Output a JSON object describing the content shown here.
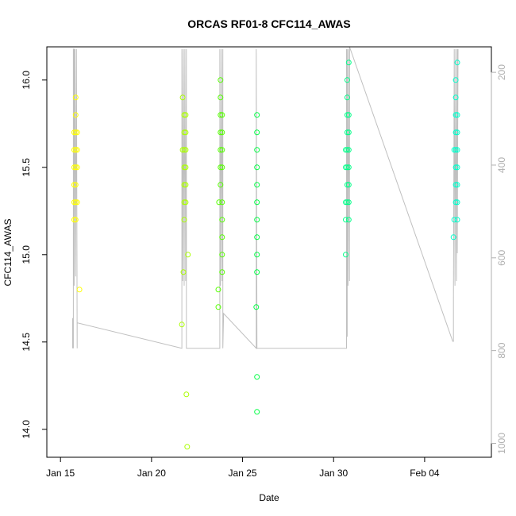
{
  "chart_data": {
    "type": "scatter",
    "title": "ORCAS RF01-8 CFC114_AWAS",
    "xlabel": "Date",
    "ylabel": "CFC114_AWAS",
    "xlim": [
      "2016-01-14T06:00",
      "2016-02-07T16:00"
    ],
    "ylim": [
      13.84,
      16.19
    ],
    "x_ticks": [
      "2016-01-15",
      "2016-01-20",
      "2016-01-25",
      "2016-01-30",
      "2016-02-04"
    ],
    "x_tick_labels": [
      "Jan 15",
      "Jan 20",
      "Jan 25",
      "Jan 30",
      "Feb 04"
    ],
    "y_ticks": [
      14.0,
      14.5,
      15.0,
      15.5,
      16.0
    ],
    "y_tick_labels": [
      "14.0",
      "14.5",
      "15.0",
      "15.5",
      "16.0"
    ],
    "y2_ticks": [
      200,
      400,
      600,
      800,
      1000
    ],
    "y2_tick_labels": [
      "200",
      "400",
      "600",
      "800",
      "1000"
    ],
    "y2_lim": [
      1030,
      145
    ],
    "y2_reversed": true,
    "grid": false,
    "series": [
      {
        "color": "#ffff00",
        "points": [
          [
            "2016-01-15T18:00",
            15.2
          ],
          [
            "2016-01-15T18:00",
            15.3
          ],
          [
            "2016-01-15T18:00",
            15.4
          ],
          [
            "2016-01-15T18:00",
            15.5
          ],
          [
            "2016-01-15T18:00",
            15.6
          ],
          [
            "2016-01-15T18:00",
            15.7
          ],
          [
            "2016-01-15T20:00",
            15.2
          ],
          [
            "2016-01-15T20:00",
            15.3
          ],
          [
            "2016-01-15T20:00",
            15.4
          ],
          [
            "2016-01-15T20:00",
            15.5
          ],
          [
            "2016-01-15T20:00",
            15.6
          ],
          [
            "2016-01-15T20:00",
            15.7
          ],
          [
            "2016-01-15T20:00",
            15.8
          ],
          [
            "2016-01-15T20:00",
            15.9
          ],
          [
            "2016-01-15T22:00",
            15.3
          ],
          [
            "2016-01-15T22:00",
            15.5
          ],
          [
            "2016-01-15T22:00",
            15.6
          ],
          [
            "2016-01-15T22:00",
            15.7
          ],
          [
            "2016-01-16T01:00",
            14.8
          ]
        ]
      },
      {
        "color": "#aaff00",
        "points": [
          [
            "2016-01-21T16:00",
            14.6
          ],
          [
            "2016-01-21T17:00",
            15.6
          ],
          [
            "2016-01-21T17:00",
            15.9
          ],
          [
            "2016-01-21T18:00",
            14.9
          ],
          [
            "2016-01-21T19:00",
            15.2
          ],
          [
            "2016-01-21T19:00",
            15.3
          ],
          [
            "2016-01-21T19:00",
            15.4
          ],
          [
            "2016-01-21T19:00",
            15.5
          ],
          [
            "2016-01-21T19:00",
            15.6
          ],
          [
            "2016-01-21T19:00",
            15.7
          ],
          [
            "2016-01-21T19:00",
            15.8
          ],
          [
            "2016-01-21T21:00",
            15.3
          ],
          [
            "2016-01-21T21:00",
            15.4
          ],
          [
            "2016-01-21T21:00",
            15.5
          ],
          [
            "2016-01-21T21:00",
            15.6
          ],
          [
            "2016-01-21T21:00",
            15.7
          ],
          [
            "2016-01-21T21:00",
            15.8
          ],
          [
            "2016-01-21T22:00",
            14.2
          ],
          [
            "2016-01-21T23:00",
            13.9
          ],
          [
            "2016-01-22T00:00",
            15.0
          ]
        ]
      },
      {
        "color": "#55ff00",
        "points": [
          [
            "2016-01-23T16:00",
            14.7
          ],
          [
            "2016-01-23T16:00",
            14.8
          ],
          [
            "2016-01-23T17:00",
            15.3
          ],
          [
            "2016-01-23T19:00",
            15.4
          ],
          [
            "2016-01-23T19:00",
            15.5
          ],
          [
            "2016-01-23T19:00",
            15.6
          ],
          [
            "2016-01-23T19:00",
            15.7
          ],
          [
            "2016-01-23T19:00",
            15.8
          ],
          [
            "2016-01-23T19:00",
            15.9
          ],
          [
            "2016-01-23T19:00",
            16.0
          ],
          [
            "2016-01-23T21:00",
            14.9
          ],
          [
            "2016-01-23T21:00",
            15.0
          ],
          [
            "2016-01-23T21:00",
            15.1
          ],
          [
            "2016-01-23T21:00",
            15.2
          ],
          [
            "2016-01-23T21:00",
            15.3
          ],
          [
            "2016-01-23T21:00",
            15.5
          ],
          [
            "2016-01-23T21:00",
            15.6
          ],
          [
            "2016-01-23T21:00",
            15.7
          ],
          [
            "2016-01-23T21:00",
            15.8
          ]
        ]
      },
      {
        "color": "#00ff44",
        "points": [
          [
            "2016-01-25T18:00",
            14.7
          ],
          [
            "2016-01-25T19:00",
            14.1
          ],
          [
            "2016-01-25T19:00",
            14.3
          ],
          [
            "2016-01-25T19:00",
            14.9
          ],
          [
            "2016-01-25T19:00",
            15.0
          ],
          [
            "2016-01-25T19:00",
            15.1
          ],
          [
            "2016-01-25T19:00",
            15.2
          ],
          [
            "2016-01-25T19:00",
            15.3
          ],
          [
            "2016-01-25T19:00",
            15.4
          ],
          [
            "2016-01-25T19:00",
            15.5
          ],
          [
            "2016-01-25T19:00",
            15.6
          ],
          [
            "2016-01-25T19:00",
            15.7
          ],
          [
            "2016-01-25T19:00",
            15.8
          ]
        ]
      },
      {
        "color": "#00ff88",
        "points": [
          [
            "2016-01-30T16:00",
            15.0
          ],
          [
            "2016-01-30T16:00",
            15.2
          ],
          [
            "2016-01-30T16:00",
            15.3
          ],
          [
            "2016-01-30T16:00",
            15.5
          ],
          [
            "2016-01-30T16:00",
            15.6
          ],
          [
            "2016-01-30T18:00",
            15.3
          ],
          [
            "2016-01-30T18:00",
            15.4
          ],
          [
            "2016-01-30T18:00",
            15.5
          ],
          [
            "2016-01-30T18:00",
            15.6
          ],
          [
            "2016-01-30T18:00",
            15.7
          ],
          [
            "2016-01-30T18:00",
            15.8
          ],
          [
            "2016-01-30T18:00",
            15.9
          ],
          [
            "2016-01-30T18:00",
            16.0
          ],
          [
            "2016-01-30T20:00",
            15.2
          ],
          [
            "2016-01-30T20:00",
            15.3
          ],
          [
            "2016-01-30T20:00",
            15.4
          ],
          [
            "2016-01-30T20:00",
            15.5
          ],
          [
            "2016-01-30T20:00",
            15.6
          ],
          [
            "2016-01-30T20:00",
            15.7
          ],
          [
            "2016-01-30T20:00",
            15.8
          ],
          [
            "2016-01-30T20:00",
            16.1
          ]
        ]
      },
      {
        "color": "#00ffcc",
        "points": [
          [
            "2016-02-05T14:00",
            15.1
          ],
          [
            "2016-02-05T15:00",
            15.2
          ],
          [
            "2016-02-05T15:00",
            15.6
          ],
          [
            "2016-02-05T17:00",
            15.3
          ],
          [
            "2016-02-05T17:00",
            15.4
          ],
          [
            "2016-02-05T17:00",
            15.5
          ],
          [
            "2016-02-05T17:00",
            15.6
          ],
          [
            "2016-02-05T17:00",
            15.7
          ],
          [
            "2016-02-05T17:00",
            15.8
          ],
          [
            "2016-02-05T17:00",
            15.9
          ],
          [
            "2016-02-05T17:00",
            16.0
          ],
          [
            "2016-02-05T19:00",
            15.2
          ],
          [
            "2016-02-05T19:00",
            15.3
          ],
          [
            "2016-02-05T19:00",
            15.4
          ],
          [
            "2016-02-05T19:00",
            15.5
          ],
          [
            "2016-02-05T19:00",
            15.6
          ],
          [
            "2016-02-05T19:00",
            15.7
          ],
          [
            "2016-02-05T19:00",
            15.8
          ],
          [
            "2016-02-05T19:00",
            16.1
          ]
        ]
      }
    ],
    "trace_color": "#c0c0c0",
    "trace": [
      [
        "2016-01-15T16:00",
        795
      ],
      [
        "2016-01-15T16:00",
        730
      ],
      [
        "2016-01-15T17:00",
        795
      ],
      [
        "2016-01-15T17:00",
        150
      ],
      [
        "2016-01-15T18:00",
        150
      ],
      [
        "2016-01-15T18:00",
        660
      ],
      [
        "2016-01-15T19:00",
        150
      ],
      [
        "2016-01-15T20:00",
        640
      ],
      [
        "2016-01-15T21:00",
        150
      ],
      [
        "2016-01-15T22:00",
        795
      ],
      [
        "2016-01-15T22:00",
        740
      ],
      [
        "2016-01-21T16:00",
        795
      ],
      [
        "2016-01-21T16:00",
        150
      ],
      [
        "2016-01-21T17:00",
        650
      ],
      [
        "2016-01-21T18:00",
        150
      ],
      [
        "2016-01-21T19:00",
        660
      ],
      [
        "2016-01-21T20:00",
        150
      ],
      [
        "2016-01-21T21:00",
        650
      ],
      [
        "2016-01-21T22:00",
        150
      ],
      [
        "2016-01-21T22:00",
        795
      ],
      [
        "2016-01-23T18:00",
        795
      ],
      [
        "2016-01-23T18:00",
        150
      ],
      [
        "2016-01-23T19:00",
        660
      ],
      [
        "2016-01-23T20:00",
        150
      ],
      [
        "2016-01-23T21:00",
        650
      ],
      [
        "2016-01-23T22:00",
        150
      ],
      [
        "2016-01-23T22:00",
        795
      ],
      [
        "2016-01-23T23:00",
        720
      ],
      [
        "2016-01-25T18:00",
        795
      ],
      [
        "2016-01-25T18:00",
        150
      ],
      [
        "2016-01-25T19:00",
        795
      ],
      [
        "2016-01-30T17:00",
        795
      ],
      [
        "2016-01-30T17:00",
        150
      ],
      [
        "2016-01-30T18:00",
        770
      ],
      [
        "2016-01-30T18:00",
        150
      ],
      [
        "2016-01-30T19:00",
        660
      ],
      [
        "2016-01-30T20:00",
        150
      ],
      [
        "2016-01-30T21:00",
        650
      ],
      [
        "2016-01-30T21:00",
        150
      ],
      [
        "2016-01-30T21:00",
        145
      ],
      [
        "2016-02-05T13:00",
        780
      ],
      [
        "2016-02-05T14:00",
        780
      ],
      [
        "2016-02-05T14:00",
        690
      ],
      [
        "2016-02-05T15:00",
        150
      ],
      [
        "2016-02-05T16:00",
        660
      ],
      [
        "2016-02-05T17:00",
        150
      ],
      [
        "2016-02-05T18:00",
        650
      ],
      [
        "2016-02-05T19:00",
        150
      ],
      [
        "2016-02-05T19:00",
        590
      ],
      [
        "2016-02-05T20:00",
        150
      ]
    ]
  }
}
